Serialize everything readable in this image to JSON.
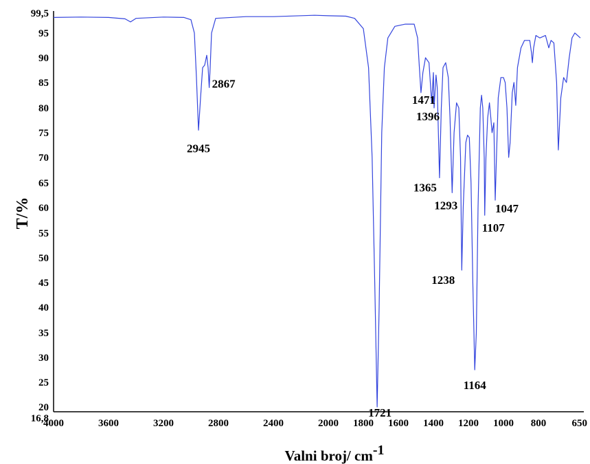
{
  "chart_data": {
    "type": "line",
    "xlabel": "Valni broj/ cm",
    "xlabel_sup": "-1",
    "ylabel": "T/%",
    "xlim": [
      4000,
      650
    ],
    "ylim": [
      16.8,
      99.5
    ],
    "x_ticks": [
      "4000",
      "3600",
      "3200",
      "2800",
      "2400",
      "2000",
      "1800",
      "1600",
      "1400",
      "1200",
      "1000",
      "800",
      "650"
    ],
    "y_ticks": [
      "99,5",
      "95",
      "90",
      "85",
      "80",
      "75",
      "70",
      "65",
      "60",
      "55",
      "50",
      "45",
      "40",
      "35",
      "30",
      "25",
      "20",
      "16,8"
    ],
    "line_color": "#3344dd",
    "series": [
      {
        "points": [
          [
            4000,
            98.5
          ],
          [
            3800,
            98.6
          ],
          [
            3600,
            98.5
          ],
          [
            3480,
            98.2
          ],
          [
            3440,
            97.5
          ],
          [
            3400,
            98.3
          ],
          [
            3200,
            98.6
          ],
          [
            3050,
            98.5
          ],
          [
            3000,
            98.0
          ],
          [
            2975,
            95.0
          ],
          [
            2960,
            86.0
          ],
          [
            2945,
            75.5
          ],
          [
            2930,
            82.0
          ],
          [
            2915,
            88.0
          ],
          [
            2900,
            88.5
          ],
          [
            2885,
            90.5
          ],
          [
            2875,
            88.0
          ],
          [
            2867,
            84.0
          ],
          [
            2860,
            88.0
          ],
          [
            2850,
            95.0
          ],
          [
            2820,
            98.3
          ],
          [
            2600,
            98.7
          ],
          [
            2400,
            98.7
          ],
          [
            2100,
            99.0
          ],
          [
            2000,
            98.9
          ],
          [
            1900,
            98.8
          ],
          [
            1850,
            98.3
          ],
          [
            1800,
            96.0
          ],
          [
            1770,
            88.0
          ],
          [
            1750,
            70.0
          ],
          [
            1735,
            45.0
          ],
          [
            1721,
            20.0
          ],
          [
            1710,
            40.0
          ],
          [
            1695,
            75.0
          ],
          [
            1680,
            88.0
          ],
          [
            1660,
            94.0
          ],
          [
            1620,
            96.5
          ],
          [
            1560,
            97.0
          ],
          [
            1510,
            97.0
          ],
          [
            1490,
            94.0
          ],
          [
            1480,
            88.0
          ],
          [
            1471,
            83.0
          ],
          [
            1460,
            87.0
          ],
          [
            1445,
            90.0
          ],
          [
            1425,
            89.0
          ],
          [
            1410,
            81.0
          ],
          [
            1400,
            87.0
          ],
          [
            1396,
            80.0
          ],
          [
            1385,
            86.5
          ],
          [
            1378,
            84.0
          ],
          [
            1365,
            66.0
          ],
          [
            1355,
            80.0
          ],
          [
            1345,
            88.0
          ],
          [
            1330,
            89.0
          ],
          [
            1315,
            86.0
          ],
          [
            1305,
            78.0
          ],
          [
            1293,
            63.0
          ],
          [
            1282,
            75.0
          ],
          [
            1268,
            81.0
          ],
          [
            1255,
            80.0
          ],
          [
            1245,
            70.0
          ],
          [
            1238,
            47.5
          ],
          [
            1230,
            60.0
          ],
          [
            1215,
            73.0
          ],
          [
            1205,
            74.5
          ],
          [
            1195,
            74.0
          ],
          [
            1185,
            65.0
          ],
          [
            1175,
            45.0
          ],
          [
            1164,
            27.5
          ],
          [
            1155,
            35.0
          ],
          [
            1145,
            60.0
          ],
          [
            1132,
            80.0
          ],
          [
            1125,
            82.5
          ],
          [
            1118,
            80.0
          ],
          [
            1110,
            70.0
          ],
          [
            1107,
            58.5
          ],
          [
            1100,
            70.0
          ],
          [
            1090,
            78.0
          ],
          [
            1080,
            81.0
          ],
          [
            1072,
            78.0
          ],
          [
            1065,
            75.0
          ],
          [
            1055,
            77.0
          ],
          [
            1047,
            61.5
          ],
          [
            1040,
            70.0
          ],
          [
            1030,
            82.0
          ],
          [
            1015,
            86.0
          ],
          [
            1000,
            86.0
          ],
          [
            990,
            85.0
          ],
          [
            980,
            80.0
          ],
          [
            970,
            70.0
          ],
          [
            962,
            73.0
          ],
          [
            950,
            83.0
          ],
          [
            940,
            85.0
          ],
          [
            930,
            80.5
          ],
          [
            920,
            88.0
          ],
          [
            900,
            92.0
          ],
          [
            880,
            93.5
          ],
          [
            850,
            93.5
          ],
          [
            840,
            91.0
          ],
          [
            835,
            89.0
          ],
          [
            828,
            92.0
          ],
          [
            815,
            94.5
          ],
          [
            795,
            94.0
          ],
          [
            775,
            94.5
          ],
          [
            763,
            92.0
          ],
          [
            755,
            93.5
          ],
          [
            745,
            93.0
          ],
          [
            735,
            85.0
          ],
          [
            729,
            71.5
          ],
          [
            720,
            82.0
          ],
          [
            710,
            86.0
          ],
          [
            700,
            85.0
          ],
          [
            690,
            90.0
          ],
          [
            680,
            94.0
          ],
          [
            670,
            95.0
          ],
          [
            660,
            94.5
          ],
          [
            650,
            94.0
          ]
        ]
      }
    ],
    "peak_labels": [
      {
        "text": "2945",
        "x": 2945,
        "y": 75.5
      },
      {
        "text": "2867",
        "x": 2867,
        "y": 84.0
      },
      {
        "text": "1721",
        "x": 1721,
        "y": 20.0
      },
      {
        "text": "1471",
        "x": 1471,
        "y": 83.0
      },
      {
        "text": "1396",
        "x": 1396,
        "y": 80.0
      },
      {
        "text": "1365",
        "x": 1365,
        "y": 66.0
      },
      {
        "text": "1293",
        "x": 1293,
        "y": 63.0
      },
      {
        "text": "1238",
        "x": 1238,
        "y": 47.5
      },
      {
        "text": "1164",
        "x": 1164,
        "y": 27.5
      },
      {
        "text": "1107",
        "x": 1107,
        "y": 58.5
      },
      {
        "text": "1047",
        "x": 1047,
        "y": 61.5
      }
    ]
  }
}
